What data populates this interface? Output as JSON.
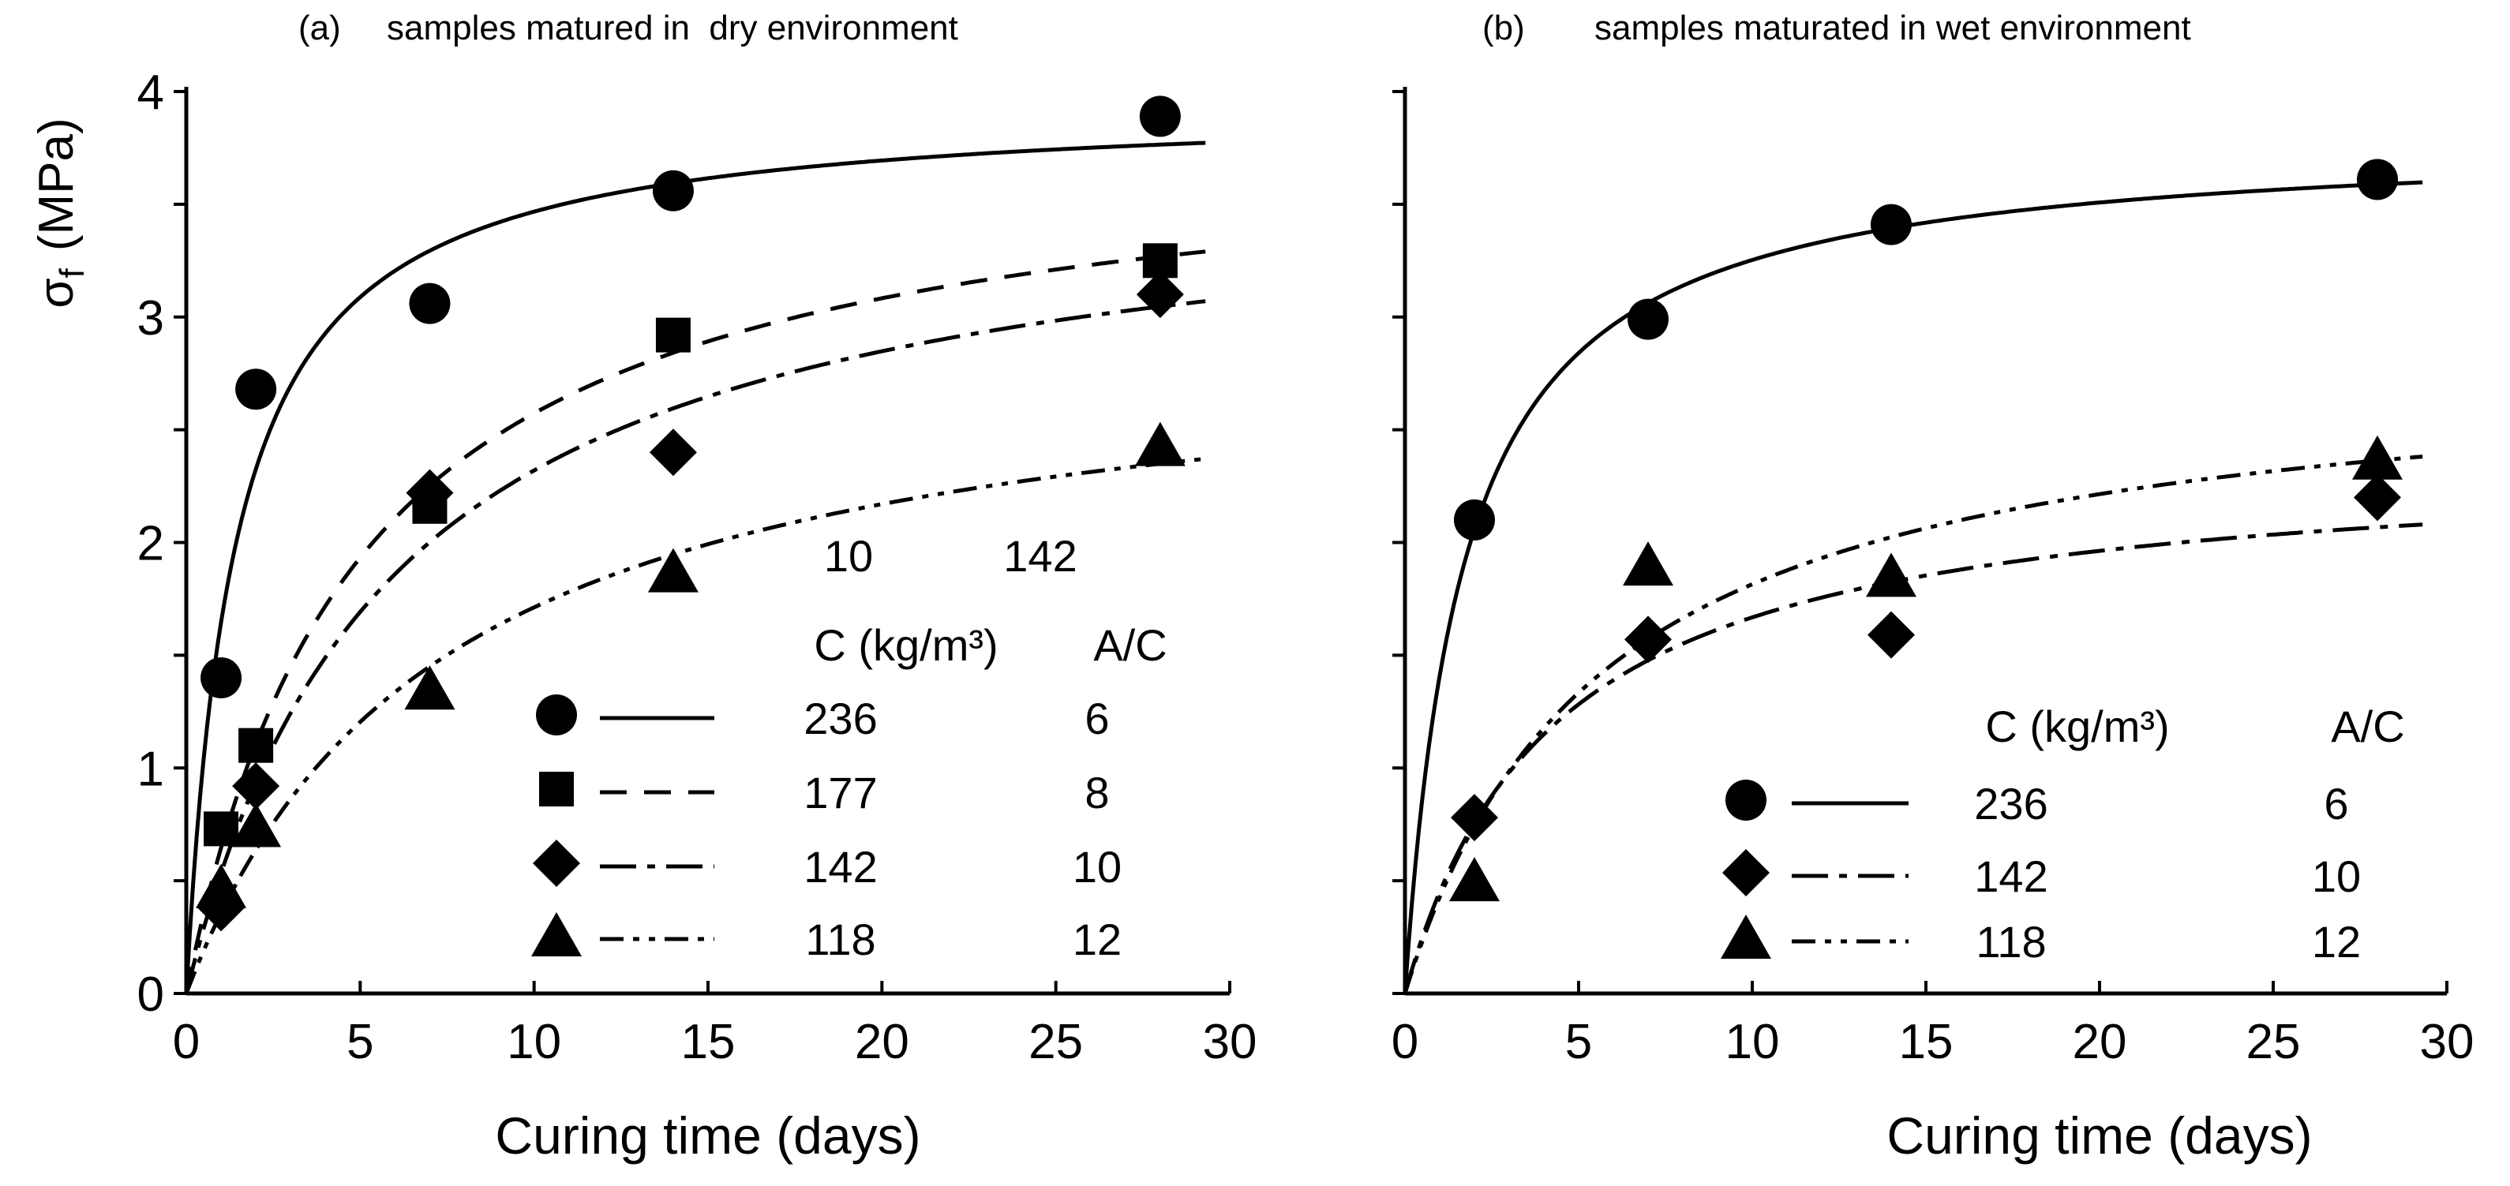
{
  "chart_data": [
    {
      "type": "scatter",
      "panel_label": "(a)",
      "title": "samples matured in  dry environment",
      "xlabel": "Curing time (days)",
      "ylabel_main": "σ",
      "ylabel_sub": "f",
      "ylabel_unit": "(MPa)",
      "xlim": [
        0,
        30
      ],
      "ylim": [
        0,
        4
      ],
      "xticks": [
        0,
        5,
        10,
        15,
        20,
        25,
        30
      ],
      "yticks": [
        0,
        1,
        2,
        3,
        4
      ],
      "grid": false,
      "legend_placement": "bottom-right",
      "legend_header_c": "C (kg/m³)",
      "legend_header_ac": "A/C",
      "stray_labels": [
        "10",
        "142"
      ],
      "series": [
        {
          "marker": "circle",
          "line": "solid",
          "c": "236",
          "ac": "6",
          "x": [
            1,
            2,
            7,
            14,
            28
          ],
          "y": [
            1.4,
            2.68,
            3.06,
            3.56,
            3.89
          ]
        },
        {
          "marker": "square",
          "line": "dashed",
          "c": "177",
          "ac": "8",
          "x": [
            1,
            2,
            7,
            14,
            28
          ],
          "y": [
            0.73,
            1.1,
            2.16,
            2.92,
            3.25
          ]
        },
        {
          "marker": "diamond",
          "line": "dashdot",
          "c": "142",
          "ac": "10",
          "x": [
            1,
            2,
            7,
            14,
            28
          ],
          "y": [
            0.38,
            0.92,
            2.22,
            2.4,
            3.1
          ]
        },
        {
          "marker": "triangle",
          "line": "dashdotdot",
          "c": "118",
          "ac": "12",
          "x": [
            1,
            2,
            7,
            14,
            28
          ],
          "y": [
            0.47,
            0.74,
            1.35,
            1.87,
            2.43
          ]
        }
      ]
    },
    {
      "type": "scatter",
      "panel_label": "(b)",
      "title": "samples maturated in wet environment",
      "xlabel": "Curing time (days)",
      "xlim": [
        0,
        30
      ],
      "ylim": [
        0,
        4
      ],
      "xticks": [
        0,
        5,
        10,
        15,
        20,
        25,
        30
      ],
      "grid": false,
      "legend_placement": "bottom-right",
      "legend_header_c": "C (kg/m³)",
      "legend_header_ac": "A/C",
      "series": [
        {
          "marker": "circle",
          "line": "solid",
          "c": "236",
          "ac": "6",
          "x": [
            2,
            7,
            14,
            28
          ],
          "y": [
            2.1,
            2.99,
            3.41,
            3.61
          ]
        },
        {
          "marker": "diamond",
          "line": "dashdot",
          "c": "142",
          "ac": "10",
          "x": [
            2,
            7,
            14,
            28
          ],
          "y": [
            0.78,
            1.57,
            1.59,
            2.2
          ]
        },
        {
          "marker": "triangle",
          "line": "dashdotdot",
          "c": "118",
          "ac": "12",
          "x": [
            2,
            7,
            14,
            28
          ],
          "y": [
            0.5,
            1.9,
            1.85,
            2.37
          ]
        }
      ]
    }
  ]
}
